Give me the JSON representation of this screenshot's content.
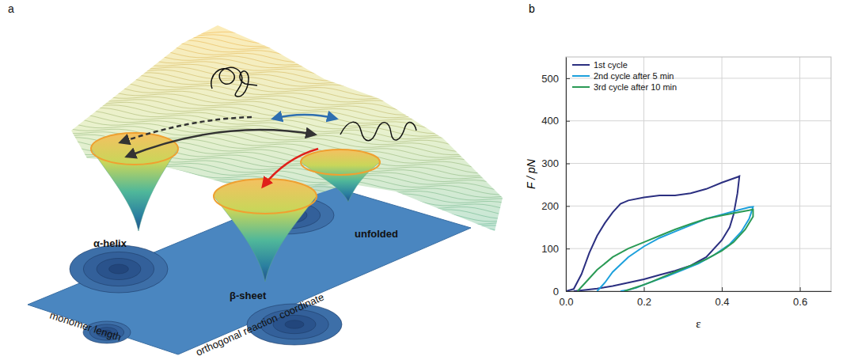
{
  "diagram": {
    "panel_label": "a",
    "wells": [
      "α-helix",
      "β-sheet",
      "unfolded"
    ],
    "axes": [
      "monomer length",
      "orthogonal reaction coordinate"
    ]
  },
  "chart_data": {
    "type": "line",
    "panel_label": "b",
    "x_label": "ε",
    "y_label": "F / pN",
    "xlim": [
      0,
      0.68
    ],
    "ylim": [
      0,
      550
    ],
    "xticks": [
      {
        "value": 0,
        "label": "0.0"
      },
      {
        "value": 0.2,
        "label": "0.2"
      },
      {
        "value": 0.4,
        "label": "0.4"
      },
      {
        "value": 0.6,
        "label": "0.6"
      }
    ],
    "yticks": [
      0,
      100,
      200,
      300,
      400,
      500
    ],
    "grid": true,
    "legend": "upper left",
    "series": [
      {
        "name": "1st cycle",
        "color": "#2b2f80",
        "x": [
          0,
          0.02,
          0.04,
          0.06,
          0.08,
          0.1,
          0.12,
          0.14,
          0.16,
          0.2,
          0.24,
          0.28,
          0.32,
          0.36,
          0.4,
          0.44,
          0.445,
          0.44,
          0.43,
          0.42,
          0.4,
          0.36,
          0.32,
          0.28,
          0.24,
          0.2,
          0.16,
          0.12,
          0.08,
          0.04,
          0.02
        ],
        "values": [
          0,
          5,
          40,
          90,
          130,
          160,
          185,
          205,
          213,
          220,
          225,
          225,
          230,
          240,
          255,
          268,
          270,
          230,
          180,
          150,
          120,
          80,
          60,
          48,
          38,
          28,
          20,
          12,
          6,
          2,
          0
        ]
      },
      {
        "name": "2nd cycle after  5 min",
        "color": "#1ca0dc",
        "x": [
          0.08,
          0.1,
          0.12,
          0.16,
          0.2,
          0.24,
          0.28,
          0.32,
          0.36,
          0.4,
          0.44,
          0.47,
          0.48,
          0.47,
          0.45,
          0.42,
          0.38,
          0.34,
          0.3,
          0.26,
          0.22,
          0.2,
          0.18,
          0.16,
          0.14
        ],
        "values": [
          0,
          20,
          45,
          80,
          105,
          125,
          140,
          155,
          170,
          180,
          190,
          197,
          198,
          170,
          140,
          110,
          85,
          65,
          50,
          35,
          22,
          15,
          8,
          3,
          0
        ]
      },
      {
        "name": "3rd cycle after 10 min",
        "color": "#2a9a55",
        "x": [
          0.03,
          0.05,
          0.08,
          0.12,
          0.16,
          0.2,
          0.24,
          0.28,
          0.32,
          0.36,
          0.4,
          0.44,
          0.47,
          0.48,
          0.48,
          0.46,
          0.43,
          0.4,
          0.36,
          0.32,
          0.28,
          0.24,
          0.22,
          0.2,
          0.17,
          0.15
        ],
        "values": [
          0,
          20,
          50,
          80,
          100,
          115,
          130,
          145,
          158,
          170,
          178,
          185,
          190,
          192,
          175,
          145,
          115,
          95,
          75,
          60,
          45,
          30,
          22,
          15,
          6,
          0
        ]
      }
    ]
  }
}
